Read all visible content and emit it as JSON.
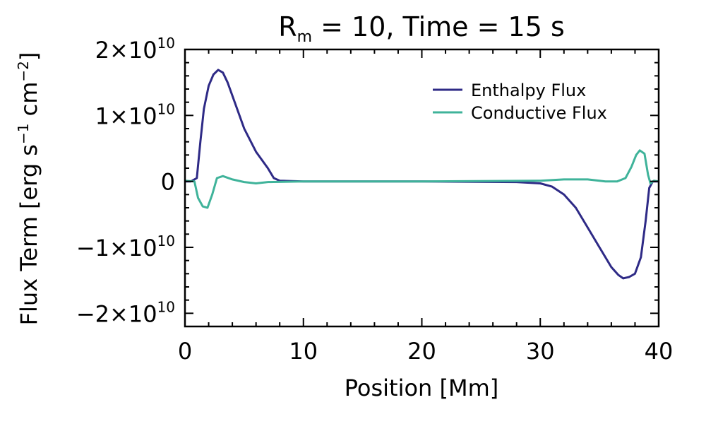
{
  "chart_data": {
    "type": "line",
    "title": {
      "base": "R",
      "sub": "m",
      "rest": " = 10, Time = 15 s"
    },
    "xlabel": "Position [Mm]",
    "ylabel": {
      "lead": "Flux Term [erg s",
      "exp1": "−1",
      "mid": " cm",
      "exp2": "−2",
      "tail": "]"
    },
    "xlim": [
      0,
      40
    ],
    "ylim": [
      -22000000000.0,
      20000000000.0
    ],
    "x_ticks": [
      {
        "value": 0,
        "label": "0"
      },
      {
        "value": 10,
        "label": "10"
      },
      {
        "value": 20,
        "label": "20"
      },
      {
        "value": 30,
        "label": "30"
      },
      {
        "value": 40,
        "label": "40"
      }
    ],
    "y_ticks": [
      {
        "value": 20000000000.0,
        "mant": "2×10",
        "exp": "10"
      },
      {
        "value": 10000000000.0,
        "mant": "1×10",
        "exp": "10"
      },
      {
        "value": 0,
        "mant": "0",
        "exp": ""
      },
      {
        "value": -10000000000.0,
        "mant": "−1×10",
        "exp": "10"
      },
      {
        "value": -20000000000.0,
        "mant": "−2×10",
        "exp": "10"
      }
    ],
    "legend_position": "top-right",
    "series": [
      {
        "name": "Enthalpy Flux",
        "color": "#2e2a86",
        "points": [
          [
            0,
            0
          ],
          [
            0.5,
            0
          ],
          [
            1.0,
            500000000.0
          ],
          [
            1.3,
            6000000000.0
          ],
          [
            1.6,
            11000000000.0
          ],
          [
            2.0,
            14500000000.0
          ],
          [
            2.4,
            16200000000.0
          ],
          [
            2.8,
            16900000000.0
          ],
          [
            3.2,
            16500000000.0
          ],
          [
            3.6,
            15000000000.0
          ],
          [
            4.2,
            12000000000.0
          ],
          [
            5.0,
            8000000000.0
          ],
          [
            6.0,
            4500000000.0
          ],
          [
            7.0,
            2000000000.0
          ],
          [
            7.5,
            500000000.0
          ],
          [
            8.0,
            100000000.0
          ],
          [
            10,
            0
          ],
          [
            20,
            0
          ],
          [
            28,
            -100000000.0
          ],
          [
            30,
            -300000000.0
          ],
          [
            31,
            -800000000.0
          ],
          [
            32,
            -2000000000.0
          ],
          [
            33,
            -4000000000.0
          ],
          [
            34,
            -7000000000.0
          ],
          [
            35,
            -10000000000.0
          ],
          [
            36,
            -13000000000.0
          ],
          [
            36.6,
            -14200000000.0
          ],
          [
            37.0,
            -14700000000.0
          ],
          [
            37.5,
            -14500000000.0
          ],
          [
            38.0,
            -14000000000.0
          ],
          [
            38.5,
            -11500000000.0
          ],
          [
            38.9,
            -6000000000.0
          ],
          [
            39.2,
            -1000000000.0
          ],
          [
            39.5,
            0
          ],
          [
            40,
            0
          ]
        ]
      },
      {
        "name": "Conductive Flux",
        "color": "#3fb39a",
        "points": [
          [
            0,
            100000000.0
          ],
          [
            0.8,
            0
          ],
          [
            1.1,
            -2500000000.0
          ],
          [
            1.5,
            -3800000000.0
          ],
          [
            1.9,
            -4000000000.0
          ],
          [
            2.3,
            -2000000000.0
          ],
          [
            2.7,
            500000000.0
          ],
          [
            3.2,
            800000000.0
          ],
          [
            4,
            300000000.0
          ],
          [
            5,
            -100000000.0
          ],
          [
            6,
            -300000000.0
          ],
          [
            7,
            -100000000.0
          ],
          [
            10,
            0
          ],
          [
            20,
            0
          ],
          [
            30,
            100000000.0
          ],
          [
            32,
            300000000.0
          ],
          [
            34,
            300000000.0
          ],
          [
            35.5,
            0
          ],
          [
            36.5,
            0
          ],
          [
            37.2,
            500000000.0
          ],
          [
            37.7,
            2200000000.0
          ],
          [
            38.1,
            4000000000.0
          ],
          [
            38.4,
            4700000000.0
          ],
          [
            38.8,
            4200000000.0
          ],
          [
            39.1,
            1000000000.0
          ],
          [
            39.3,
            -300000000.0
          ],
          [
            39.6,
            100000000.0
          ],
          [
            40,
            0
          ]
        ]
      }
    ]
  }
}
